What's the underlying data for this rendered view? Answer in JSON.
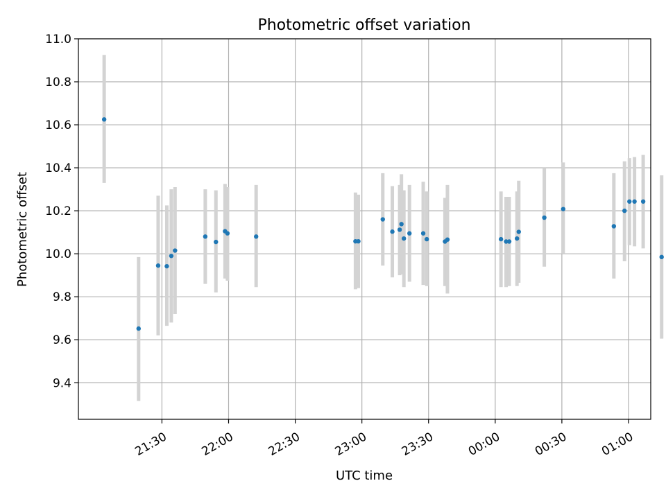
{
  "chart_data": {
    "type": "scatter",
    "title": "Photometric offset variation",
    "xlabel": "UTC time",
    "ylabel": "Photometric offset",
    "x_unit": "minutes after 21:00 UTC",
    "xlim": [
      -7.6,
      250.0
    ],
    "ylim": [
      9.23,
      11.0
    ],
    "yticks": [
      9.4,
      9.6,
      9.8,
      10.0,
      10.2,
      10.4,
      10.6,
      10.8,
      11.0
    ],
    "ytick_labels": [
      "9.4",
      "9.6",
      "9.8",
      "10.0",
      "10.2",
      "10.4",
      "10.6",
      "10.8",
      "11.0"
    ],
    "xticks": [
      30,
      60,
      90,
      120,
      150,
      180,
      210,
      240
    ],
    "xtick_labels": [
      "21:30",
      "22:00",
      "22:30",
      "23:00",
      "23:30",
      "00:00",
      "00:30",
      "01:00"
    ],
    "grid": true,
    "marker_color": "#1f77b4",
    "errorbar_color": "#d3d3d3",
    "points": [
      {
        "x": 4.0,
        "y": 10.625,
        "ylow": 10.33,
        "yhigh": 10.925
      },
      {
        "x": 19.5,
        "y": 9.652,
        "ylow": 9.315,
        "yhigh": 9.985
      },
      {
        "x": 28.3,
        "y": 9.945,
        "ylow": 9.62,
        "yhigh": 10.27
      },
      {
        "x": 32.2,
        "y": 9.942,
        "ylow": 9.665,
        "yhigh": 10.225
      },
      {
        "x": 34.2,
        "y": 9.99,
        "ylow": 9.68,
        "yhigh": 10.3
      },
      {
        "x": 35.9,
        "y": 10.015,
        "ylow": 9.72,
        "yhigh": 10.31
      },
      {
        "x": 49.5,
        "y": 10.08,
        "ylow": 9.86,
        "yhigh": 10.3
      },
      {
        "x": 54.3,
        "y": 10.055,
        "ylow": 9.82,
        "yhigh": 10.295
      },
      {
        "x": 58.4,
        "y": 10.105,
        "ylow": 9.885,
        "yhigh": 10.325
      },
      {
        "x": 59.5,
        "y": 10.095,
        "ylow": 9.875,
        "yhigh": 10.31
      },
      {
        "x": 72.4,
        "y": 10.08,
        "ylow": 9.845,
        "yhigh": 10.32
      },
      {
        "x": 117.1,
        "y": 10.058,
        "ylow": 9.835,
        "yhigh": 10.285
      },
      {
        "x": 118.4,
        "y": 10.058,
        "ylow": 9.84,
        "yhigh": 10.275
      },
      {
        "x": 129.4,
        "y": 10.16,
        "ylow": 9.945,
        "yhigh": 10.375
      },
      {
        "x": 133.7,
        "y": 10.103,
        "ylow": 9.89,
        "yhigh": 10.315
      },
      {
        "x": 137.0,
        "y": 10.112,
        "ylow": 9.9,
        "yhigh": 10.32
      },
      {
        "x": 137.8,
        "y": 10.138,
        "ylow": 9.905,
        "yhigh": 10.37
      },
      {
        "x": 138.9,
        "y": 10.071,
        "ylow": 9.845,
        "yhigh": 10.295
      },
      {
        "x": 141.4,
        "y": 10.095,
        "ylow": 9.87,
        "yhigh": 10.32
      },
      {
        "x": 147.6,
        "y": 10.095,
        "ylow": 9.855,
        "yhigh": 10.335
      },
      {
        "x": 149.2,
        "y": 10.068,
        "ylow": 9.85,
        "yhigh": 10.29
      },
      {
        "x": 157.4,
        "y": 10.057,
        "ylow": 9.85,
        "yhigh": 10.26
      },
      {
        "x": 158.5,
        "y": 10.066,
        "ylow": 9.815,
        "yhigh": 10.32
      },
      {
        "x": 182.6,
        "y": 10.068,
        "ylow": 9.845,
        "yhigh": 10.29
      },
      {
        "x": 184.9,
        "y": 10.057,
        "ylow": 9.845,
        "yhigh": 10.265
      },
      {
        "x": 186.3,
        "y": 10.057,
        "ylow": 9.85,
        "yhigh": 10.265
      },
      {
        "x": 189.8,
        "y": 10.071,
        "ylow": 9.85,
        "yhigh": 10.29
      },
      {
        "x": 190.6,
        "y": 10.102,
        "ylow": 9.865,
        "yhigh": 10.34
      },
      {
        "x": 202.1,
        "y": 10.168,
        "ylow": 9.94,
        "yhigh": 10.4
      },
      {
        "x": 210.6,
        "y": 10.208,
        "ylow": 10.0,
        "yhigh": 10.425
      },
      {
        "x": 233.4,
        "y": 10.128,
        "ylow": 9.885,
        "yhigh": 10.375
      },
      {
        "x": 238.2,
        "y": 10.2,
        "ylow": 9.965,
        "yhigh": 10.43
      },
      {
        "x": 240.4,
        "y": 10.243,
        "ylow": 10.04,
        "yhigh": 10.445
      },
      {
        "x": 242.7,
        "y": 10.243,
        "ylow": 10.035,
        "yhigh": 10.45
      },
      {
        "x": 246.6,
        "y": 10.243,
        "ylow": 10.025,
        "yhigh": 10.46
      },
      {
        "x": 254.9,
        "y": 9.985,
        "ylow": 9.605,
        "yhigh": 10.365
      }
    ]
  }
}
